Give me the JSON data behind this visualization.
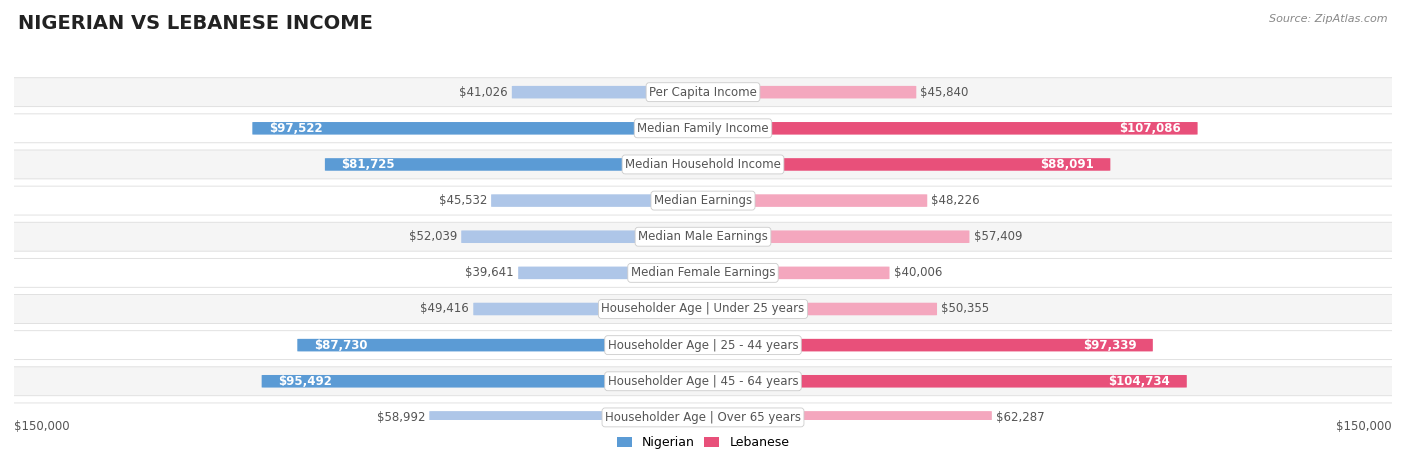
{
  "title": "NIGERIAN VS LEBANESE INCOME",
  "source": "Source: ZipAtlas.com",
  "categories": [
    "Per Capita Income",
    "Median Family Income",
    "Median Household Income",
    "Median Earnings",
    "Median Male Earnings",
    "Median Female Earnings",
    "Householder Age | Under 25 years",
    "Householder Age | 25 - 44 years",
    "Householder Age | 45 - 64 years",
    "Householder Age | Over 65 years"
  ],
  "nigerian_values": [
    41026,
    97522,
    81725,
    45532,
    52039,
    39641,
    49416,
    87730,
    95492,
    58992
  ],
  "lebanese_values": [
    45840,
    107086,
    88091,
    48226,
    57409,
    40006,
    50355,
    97339,
    104734,
    62287
  ],
  "max_value": 150000,
  "nigerian_color_high": "#5b9bd5",
  "nigerian_color_low": "#aec6e8",
  "lebanese_color_high": "#e8507a",
  "lebanese_color_low": "#f4a7be",
  "label_color_dark": "#555555",
  "label_color_white": "#ffffff",
  "background_color": "#ffffff",
  "row_bg_even": "#f5f5f5",
  "row_bg_odd": "#ffffff",
  "row_border": "#dddddd",
  "title_fontsize": 14,
  "label_fontsize": 8.5,
  "category_fontsize": 8.5,
  "legend_labels": [
    "Nigerian",
    "Lebanese"
  ],
  "legend_colors": [
    "#5b9bd5",
    "#e8507a"
  ],
  "x_tick_label": "$150,000",
  "nigerian_high_rows": [
    1,
    2,
    7,
    8
  ],
  "lebanese_high_rows": [
    1,
    2,
    7,
    8
  ]
}
